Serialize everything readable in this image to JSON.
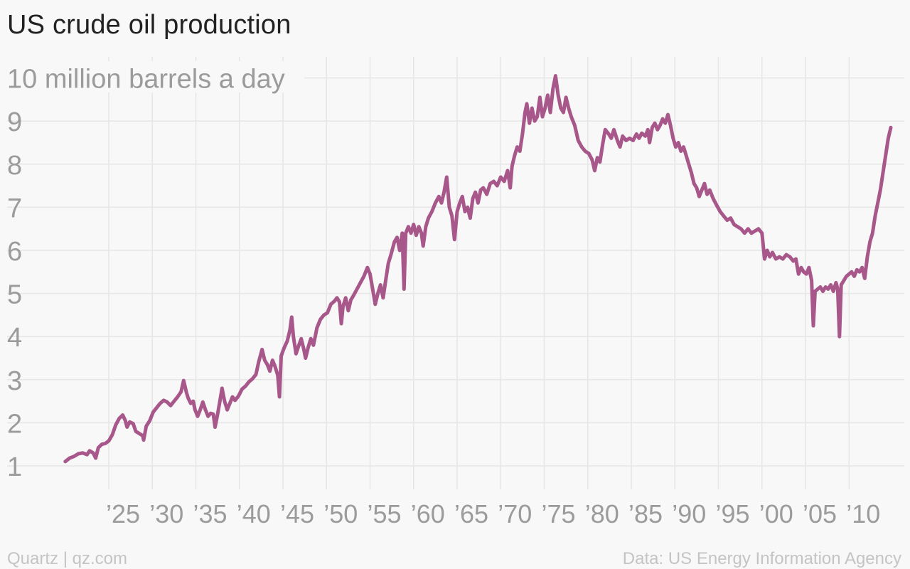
{
  "title": "US crude oil production",
  "source_left": "Quartz | qz.com",
  "source_right": "Data: US Energy Information Agency",
  "colors": {
    "line": "#a8578a",
    "grid": "#e6e6e6",
    "label": "#9b9b9b",
    "title": "#222222",
    "background": "#f8f8f8"
  },
  "chart_data": {
    "type": "line",
    "title": "US crude oil production",
    "ylabel": "10 million barrels a day",
    "xlabel": "",
    "ylim": [
      0.5,
      10.3
    ],
    "xlim": [
      1915,
      2017
    ],
    "grid": true,
    "y_ticks": [
      1,
      2,
      3,
      4,
      5,
      6,
      7,
      8,
      9,
      10
    ],
    "y_tick_labels": [
      "1",
      "2",
      "3",
      "4",
      "5",
      "6",
      "7",
      "8",
      "9",
      "10 million barrels a day"
    ],
    "x_ticks": [
      1925,
      1930,
      1935,
      1940,
      1945,
      1950,
      1955,
      1960,
      1965,
      1970,
      1975,
      1980,
      1985,
      1990,
      1995,
      2000,
      2005,
      2010
    ],
    "x_tick_labels": [
      "’25",
      "’30",
      "’35",
      "’40",
      "’45",
      "’50",
      "’55",
      "’60",
      "’65",
      "’70",
      "’75",
      "’80",
      "’85",
      "’90",
      "’95",
      "’00",
      "’05",
      "’10"
    ],
    "series": [
      {
        "values": [
          [
            1920.0,
            1.1
          ],
          [
            1920.5,
            1.18
          ],
          [
            1921.0,
            1.22
          ],
          [
            1921.5,
            1.28
          ],
          [
            1922.0,
            1.3
          ],
          [
            1922.5,
            1.26
          ],
          [
            1922.8,
            1.35
          ],
          [
            1923.2,
            1.3
          ],
          [
            1923.5,
            1.18
          ],
          [
            1923.8,
            1.42
          ],
          [
            1924.2,
            1.5
          ],
          [
            1924.6,
            1.52
          ],
          [
            1925.0,
            1.58
          ],
          [
            1925.4,
            1.72
          ],
          [
            1925.8,
            1.95
          ],
          [
            1926.2,
            2.1
          ],
          [
            1926.6,
            2.18
          ],
          [
            1926.9,
            2.05
          ],
          [
            1927.1,
            1.9
          ],
          [
            1927.4,
            2.02
          ],
          [
            1927.8,
            1.98
          ],
          [
            1928.1,
            1.8
          ],
          [
            1928.5,
            1.75
          ],
          [
            1928.9,
            1.7
          ],
          [
            1929.0,
            1.6
          ],
          [
            1929.3,
            1.92
          ],
          [
            1929.7,
            2.05
          ],
          [
            1930.1,
            2.25
          ],
          [
            1930.5,
            2.35
          ],
          [
            1930.9,
            2.45
          ],
          [
            1931.3,
            2.52
          ],
          [
            1931.7,
            2.48
          ],
          [
            1932.1,
            2.4
          ],
          [
            1932.5,
            2.5
          ],
          [
            1932.9,
            2.6
          ],
          [
            1933.3,
            2.72
          ],
          [
            1933.6,
            2.98
          ],
          [
            1933.9,
            2.72
          ],
          [
            1934.1,
            2.58
          ],
          [
            1934.4,
            2.45
          ],
          [
            1934.7,
            2.5
          ],
          [
            1934.9,
            2.3
          ],
          [
            1935.2,
            2.15
          ],
          [
            1935.5,
            2.3
          ],
          [
            1935.8,
            2.48
          ],
          [
            1936.1,
            2.3
          ],
          [
            1936.4,
            2.15
          ],
          [
            1936.7,
            2.22
          ],
          [
            1937.0,
            2.2
          ],
          [
            1937.2,
            1.9
          ],
          [
            1937.5,
            2.2
          ],
          [
            1937.8,
            2.55
          ],
          [
            1938.0,
            2.8
          ],
          [
            1938.3,
            2.5
          ],
          [
            1938.6,
            2.3
          ],
          [
            1938.9,
            2.45
          ],
          [
            1939.2,
            2.6
          ],
          [
            1939.5,
            2.52
          ],
          [
            1939.9,
            2.62
          ],
          [
            1940.3,
            2.78
          ],
          [
            1940.7,
            2.85
          ],
          [
            1941.1,
            2.95
          ],
          [
            1941.5,
            3.02
          ],
          [
            1941.9,
            3.12
          ],
          [
            1942.2,
            3.4
          ],
          [
            1942.6,
            3.7
          ],
          [
            1942.9,
            3.45
          ],
          [
            1943.2,
            3.35
          ],
          [
            1943.5,
            3.2
          ],
          [
            1943.8,
            3.45
          ],
          [
            1944.1,
            3.3
          ],
          [
            1944.4,
            3.1
          ],
          [
            1944.6,
            2.6
          ],
          [
            1944.8,
            3.55
          ],
          [
            1945.1,
            3.72
          ],
          [
            1945.5,
            3.9
          ],
          [
            1945.8,
            4.15
          ],
          [
            1946.0,
            4.45
          ],
          [
            1946.2,
            4.0
          ],
          [
            1946.5,
            3.6
          ],
          [
            1946.8,
            3.78
          ],
          [
            1947.1,
            3.95
          ],
          [
            1947.4,
            3.7
          ],
          [
            1947.6,
            3.5
          ],
          [
            1947.9,
            3.75
          ],
          [
            1948.2,
            3.95
          ],
          [
            1948.5,
            3.8
          ],
          [
            1948.9,
            4.2
          ],
          [
            1949.3,
            4.4
          ],
          [
            1949.7,
            4.5
          ],
          [
            1950.1,
            4.55
          ],
          [
            1950.5,
            4.75
          ],
          [
            1950.9,
            4.82
          ],
          [
            1951.2,
            4.9
          ],
          [
            1951.5,
            4.8
          ],
          [
            1951.7,
            4.3
          ],
          [
            1951.9,
            4.7
          ],
          [
            1952.2,
            4.9
          ],
          [
            1952.5,
            4.6
          ],
          [
            1952.8,
            4.85
          ],
          [
            1953.1,
            4.95
          ],
          [
            1953.5,
            5.1
          ],
          [
            1953.9,
            5.25
          ],
          [
            1954.3,
            5.4
          ],
          [
            1954.7,
            5.6
          ],
          [
            1955.0,
            5.45
          ],
          [
            1955.3,
            5.1
          ],
          [
            1955.6,
            4.75
          ],
          [
            1955.9,
            5.0
          ],
          [
            1956.2,
            5.2
          ],
          [
            1956.5,
            4.9
          ],
          [
            1956.8,
            5.3
          ],
          [
            1957.1,
            5.7
          ],
          [
            1957.4,
            5.9
          ],
          [
            1957.8,
            6.2
          ],
          [
            1958.1,
            6.3
          ],
          [
            1958.4,
            6.0
          ],
          [
            1958.7,
            6.4
          ],
          [
            1958.9,
            5.1
          ],
          [
            1959.1,
            6.4
          ],
          [
            1959.4,
            6.55
          ],
          [
            1959.7,
            6.4
          ],
          [
            1960.0,
            6.6
          ],
          [
            1960.3,
            6.35
          ],
          [
            1960.6,
            6.55
          ],
          [
            1960.9,
            6.4
          ],
          [
            1961.1,
            6.1
          ],
          [
            1961.4,
            6.55
          ],
          [
            1961.7,
            6.75
          ],
          [
            1962.1,
            6.9
          ],
          [
            1962.5,
            7.1
          ],
          [
            1962.9,
            7.25
          ],
          [
            1963.2,
            7.1
          ],
          [
            1963.5,
            7.35
          ],
          [
            1963.8,
            7.7
          ],
          [
            1964.1,
            7.0
          ],
          [
            1964.4,
            6.8
          ],
          [
            1964.7,
            6.25
          ],
          [
            1965.0,
            6.9
          ],
          [
            1965.3,
            7.1
          ],
          [
            1965.6,
            7.25
          ],
          [
            1965.9,
            6.9
          ],
          [
            1966.2,
            7.0
          ],
          [
            1966.5,
            6.75
          ],
          [
            1966.8,
            7.2
          ],
          [
            1967.1,
            7.35
          ],
          [
            1967.4,
            7.1
          ],
          [
            1967.7,
            7.4
          ],
          [
            1968.0,
            7.45
          ],
          [
            1968.4,
            7.3
          ],
          [
            1968.8,
            7.55
          ],
          [
            1969.2,
            7.6
          ],
          [
            1969.6,
            7.5
          ],
          [
            1970.0,
            7.7
          ],
          [
            1970.4,
            7.6
          ],
          [
            1970.8,
            7.85
          ],
          [
            1971.1,
            7.45
          ],
          [
            1971.3,
            7.95
          ],
          [
            1971.6,
            8.2
          ],
          [
            1971.9,
            8.4
          ],
          [
            1972.2,
            8.3
          ],
          [
            1972.5,
            8.7
          ],
          [
            1972.8,
            9.2
          ],
          [
            1973.0,
            9.4
          ],
          [
            1973.3,
            8.95
          ],
          [
            1973.6,
            9.3
          ],
          [
            1973.9,
            9.0
          ],
          [
            1974.2,
            9.1
          ],
          [
            1974.5,
            9.55
          ],
          [
            1974.8,
            9.1
          ],
          [
            1975.1,
            9.3
          ],
          [
            1975.4,
            9.6
          ],
          [
            1975.7,
            9.2
          ],
          [
            1976.0,
            9.75
          ],
          [
            1976.3,
            10.05
          ],
          [
            1976.6,
            9.6
          ],
          [
            1976.9,
            9.3
          ],
          [
            1977.2,
            9.2
          ],
          [
            1977.5,
            9.55
          ],
          [
            1977.8,
            9.3
          ],
          [
            1978.1,
            9.1
          ],
          [
            1978.5,
            8.9
          ],
          [
            1978.9,
            8.55
          ],
          [
            1979.3,
            8.4
          ],
          [
            1979.7,
            8.3
          ],
          [
            1980.1,
            8.25
          ],
          [
            1980.5,
            8.1
          ],
          [
            1980.8,
            7.85
          ],
          [
            1981.1,
            8.15
          ],
          [
            1981.4,
            8.05
          ],
          [
            1981.7,
            8.45
          ],
          [
            1982.0,
            8.8
          ],
          [
            1982.4,
            8.7
          ],
          [
            1982.7,
            8.6
          ],
          [
            1983.0,
            8.8
          ],
          [
            1983.4,
            8.55
          ],
          [
            1983.7,
            8.4
          ],
          [
            1984.0,
            8.65
          ],
          [
            1984.4,
            8.55
          ],
          [
            1984.8,
            8.6
          ],
          [
            1985.2,
            8.55
          ],
          [
            1985.6,
            8.7
          ],
          [
            1985.9,
            8.6
          ],
          [
            1986.2,
            8.72
          ],
          [
            1986.6,
            8.65
          ],
          [
            1986.9,
            8.8
          ],
          [
            1987.1,
            8.5
          ],
          [
            1987.4,
            8.85
          ],
          [
            1987.7,
            8.95
          ],
          [
            1988.0,
            8.8
          ],
          [
            1988.3,
            8.9
          ],
          [
            1988.6,
            9.05
          ],
          [
            1988.9,
            8.95
          ],
          [
            1989.2,
            9.15
          ],
          [
            1989.5,
            8.9
          ],
          [
            1989.8,
            8.6
          ],
          [
            1990.1,
            8.4
          ],
          [
            1990.4,
            8.5
          ],
          [
            1990.7,
            8.3
          ],
          [
            1991.0,
            8.4
          ],
          [
            1991.3,
            8.2
          ],
          [
            1991.6,
            8.0
          ],
          [
            1991.9,
            7.8
          ],
          [
            1992.2,
            7.55
          ],
          [
            1992.5,
            7.45
          ],
          [
            1992.8,
            7.25
          ],
          [
            1993.1,
            7.4
          ],
          [
            1993.4,
            7.55
          ],
          [
            1993.7,
            7.3
          ],
          [
            1994.0,
            7.4
          ],
          [
            1994.4,
            7.2
          ],
          [
            1994.8,
            7.05
          ],
          [
            1995.2,
            6.9
          ],
          [
            1995.6,
            6.8
          ],
          [
            1996.0,
            6.7
          ],
          [
            1996.4,
            6.75
          ],
          [
            1996.8,
            6.6
          ],
          [
            1997.2,
            6.55
          ],
          [
            1997.6,
            6.5
          ],
          [
            1998.0,
            6.4
          ],
          [
            1998.4,
            6.5
          ],
          [
            1998.8,
            6.4
          ],
          [
            1999.2,
            6.45
          ],
          [
            1999.6,
            6.5
          ],
          [
            2000.0,
            6.4
          ],
          [
            2000.3,
            5.8
          ],
          [
            2000.6,
            6.0
          ],
          [
            2000.9,
            5.85
          ],
          [
            2001.2,
            5.95
          ],
          [
            2001.6,
            5.8
          ],
          [
            2002.0,
            5.85
          ],
          [
            2002.4,
            5.8
          ],
          [
            2002.8,
            5.9
          ],
          [
            2003.2,
            5.85
          ],
          [
            2003.6,
            5.75
          ],
          [
            2003.9,
            5.8
          ],
          [
            2004.2,
            5.45
          ],
          [
            2004.5,
            5.6
          ],
          [
            2004.8,
            5.5
          ],
          [
            2005.1,
            5.45
          ],
          [
            2005.4,
            5.6
          ],
          [
            2005.7,
            5.3
          ],
          [
            2005.9,
            4.25
          ],
          [
            2006.1,
            5.05
          ],
          [
            2006.4,
            5.1
          ],
          [
            2006.7,
            5.15
          ],
          [
            2007.0,
            5.05
          ],
          [
            2007.3,
            5.15
          ],
          [
            2007.6,
            5.1
          ],
          [
            2007.9,
            5.2
          ],
          [
            2008.2,
            5.05
          ],
          [
            2008.5,
            5.25
          ],
          [
            2008.7,
            5.1
          ],
          [
            2008.9,
            4.0
          ],
          [
            2009.1,
            5.2
          ],
          [
            2009.4,
            5.3
          ],
          [
            2009.7,
            5.4
          ],
          [
            2010.0,
            5.45
          ],
          [
            2010.3,
            5.5
          ],
          [
            2010.6,
            5.4
          ],
          [
            2010.9,
            5.55
          ],
          [
            2011.2,
            5.5
          ],
          [
            2011.5,
            5.6
          ],
          [
            2011.8,
            5.35
          ],
          [
            2012.1,
            5.85
          ],
          [
            2012.4,
            6.2
          ],
          [
            2012.7,
            6.4
          ],
          [
            2013.0,
            6.8
          ],
          [
            2013.3,
            7.1
          ],
          [
            2013.6,
            7.4
          ],
          [
            2013.9,
            7.8
          ],
          [
            2014.2,
            8.2
          ],
          [
            2014.5,
            8.6
          ],
          [
            2014.8,
            8.85
          ]
        ]
      }
    ]
  }
}
